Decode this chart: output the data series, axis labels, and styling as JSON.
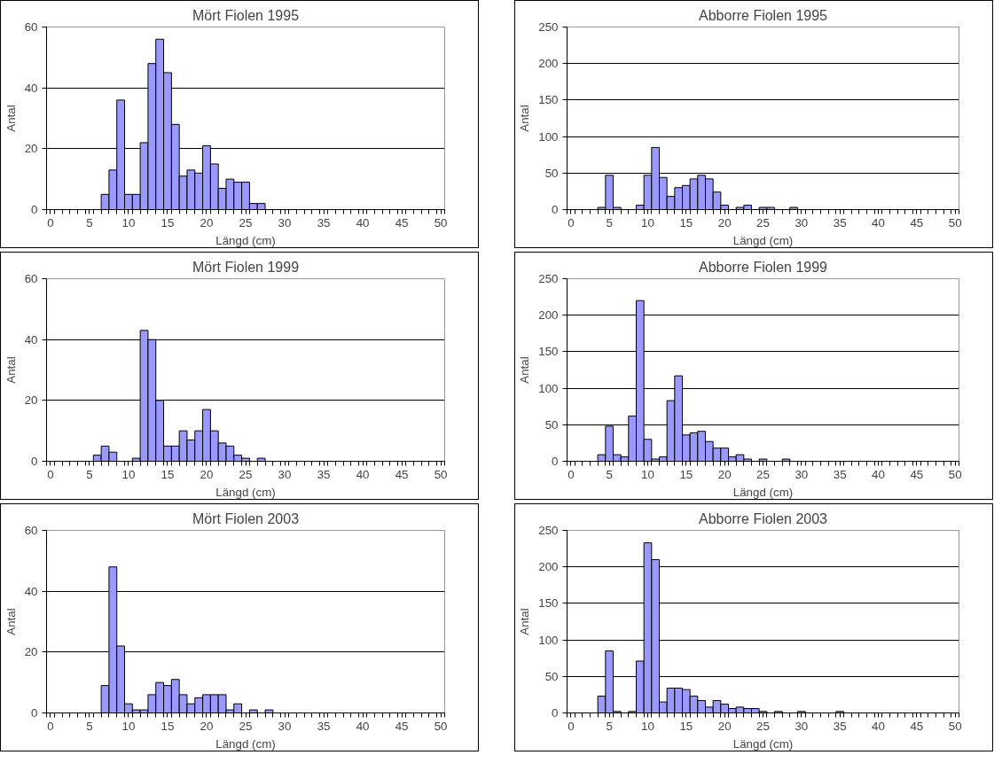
{
  "chart_data": [
    {
      "type": "histogram",
      "title": "Mört Fiolen 1995",
      "xlabel": "Längd (cm)",
      "ylabel": "Antal",
      "color": "#9999ff",
      "grid": "y",
      "xlim": [
        -0.5,
        50.5
      ],
      "xticks": [
        0,
        5,
        10,
        15,
        20,
        25,
        30,
        35,
        40,
        45,
        50
      ],
      "ylim": [
        0,
        60
      ],
      "yticks": [
        0,
        20,
        40,
        60
      ],
      "bins": [
        -0.5,
        0.5,
        1.5,
        2.5,
        3.5,
        4.5,
        5.5,
        6.5,
        7.5,
        8.5,
        9.5,
        10.5,
        11.5,
        12.5,
        13.5,
        14.5,
        15.5,
        16.5,
        17.5,
        18.5,
        19.5,
        20.5,
        21.5,
        22.5,
        23.5,
        24.5,
        25.5,
        26.5,
        27.5,
        28.5,
        29.5,
        30.5,
        31.5,
        32.5,
        33.5,
        34.5,
        35.5,
        36.5,
        37.5,
        38.5,
        39.5,
        40.5,
        41.5,
        42.5,
        43.5,
        44.5,
        45.5,
        46.5,
        47.5,
        48.5,
        49.5,
        50.5
      ],
      "values": [
        0,
        0,
        0,
        0,
        0,
        0,
        0,
        5,
        13,
        36,
        5,
        5,
        22,
        48,
        56,
        45,
        28,
        11,
        13,
        12,
        21,
        15,
        7,
        10,
        9,
        9,
        2,
        2,
        0,
        0,
        0,
        0,
        0,
        0,
        0,
        0,
        0,
        0,
        0,
        0,
        0,
        0,
        0,
        0,
        0,
        0,
        0,
        0,
        0,
        0,
        0
      ]
    },
    {
      "type": "histogram",
      "title": "Abborre Fiolen 1995",
      "xlabel": "Längd (cm)",
      "ylabel": "Antal",
      "color": "#9999ff",
      "grid": "y",
      "xlim": [
        -0.5,
        50.5
      ],
      "xticks": [
        0,
        5,
        10,
        15,
        20,
        25,
        30,
        35,
        40,
        45,
        50
      ],
      "ylim": [
        0,
        250
      ],
      "yticks": [
        0,
        50,
        100,
        150,
        200,
        250
      ],
      "bins": [
        -0.5,
        0.5,
        1.5,
        2.5,
        3.5,
        4.5,
        5.5,
        6.5,
        7.5,
        8.5,
        9.5,
        10.5,
        11.5,
        12.5,
        13.5,
        14.5,
        15.5,
        16.5,
        17.5,
        18.5,
        19.5,
        20.5,
        21.5,
        22.5,
        23.5,
        24.5,
        25.5,
        26.5,
        27.5,
        28.5,
        29.5,
        30.5,
        31.5,
        32.5,
        33.5,
        34.5,
        35.5,
        36.5,
        37.5,
        38.5,
        39.5,
        40.5,
        41.5,
        42.5,
        43.5,
        44.5,
        45.5,
        46.5,
        47.5,
        48.5,
        49.5,
        50.5
      ],
      "values": [
        0,
        0,
        0,
        0,
        3,
        47,
        3,
        0,
        0,
        6,
        47,
        85,
        44,
        18,
        30,
        33,
        42,
        47,
        42,
        24,
        6,
        0,
        3,
        6,
        0,
        3,
        3,
        0,
        0,
        3,
        0,
        0,
        0,
        0,
        0,
        0,
        0,
        0,
        0,
        0,
        0,
        0,
        0,
        0,
        0,
        0,
        0,
        0,
        0,
        0,
        0
      ]
    },
    {
      "type": "histogram",
      "title": "Mört Fiolen 1999",
      "xlabel": "Längd (cm)",
      "ylabel": "Antal",
      "color": "#9999ff",
      "grid": "y",
      "xlim": [
        -0.5,
        50.5
      ],
      "xticks": [
        0,
        5,
        10,
        15,
        20,
        25,
        30,
        35,
        40,
        45,
        50
      ],
      "ylim": [
        0,
        60
      ],
      "yticks": [
        0,
        20,
        40,
        60
      ],
      "bins": [
        -0.5,
        0.5,
        1.5,
        2.5,
        3.5,
        4.5,
        5.5,
        6.5,
        7.5,
        8.5,
        9.5,
        10.5,
        11.5,
        12.5,
        13.5,
        14.5,
        15.5,
        16.5,
        17.5,
        18.5,
        19.5,
        20.5,
        21.5,
        22.5,
        23.5,
        24.5,
        25.5,
        26.5,
        27.5,
        28.5,
        29.5,
        30.5,
        31.5,
        32.5,
        33.5,
        34.5,
        35.5,
        36.5,
        37.5,
        38.5,
        39.5,
        40.5,
        41.5,
        42.5,
        43.5,
        44.5,
        45.5,
        46.5,
        47.5,
        48.5,
        49.5,
        50.5
      ],
      "values": [
        0,
        0,
        0,
        0,
        0,
        0,
        2,
        5,
        3,
        0,
        0,
        1,
        43,
        40,
        20,
        5,
        5,
        10,
        7,
        10,
        17,
        10,
        6,
        5,
        2,
        1,
        0,
        1,
        0,
        0,
        0,
        0,
        0,
        0,
        0,
        0,
        0,
        0,
        0,
        0,
        0,
        0,
        0,
        0,
        0,
        0,
        0,
        0,
        0,
        0,
        0
      ]
    },
    {
      "type": "histogram",
      "title": "Abborre Fiolen 1999",
      "xlabel": "Längd (cm)",
      "ylabel": "Antal",
      "color": "#9999ff",
      "grid": "y",
      "xlim": [
        -0.5,
        50.5
      ],
      "xticks": [
        0,
        5,
        10,
        15,
        20,
        25,
        30,
        35,
        40,
        45,
        50
      ],
      "ylim": [
        0,
        250
      ],
      "yticks": [
        0,
        50,
        100,
        150,
        200,
        250
      ],
      "bins": [
        -0.5,
        0.5,
        1.5,
        2.5,
        3.5,
        4.5,
        5.5,
        6.5,
        7.5,
        8.5,
        9.5,
        10.5,
        11.5,
        12.5,
        13.5,
        14.5,
        15.5,
        16.5,
        17.5,
        18.5,
        19.5,
        20.5,
        21.5,
        22.5,
        23.5,
        24.5,
        25.5,
        26.5,
        27.5,
        28.5,
        29.5,
        30.5,
        31.5,
        32.5,
        33.5,
        34.5,
        35.5,
        36.5,
        37.5,
        38.5,
        39.5,
        40.5,
        41.5,
        42.5,
        43.5,
        44.5,
        45.5,
        46.5,
        47.5,
        48.5,
        49.5,
        50.5
      ],
      "values": [
        0,
        0,
        0,
        0,
        9,
        48,
        9,
        6,
        62,
        220,
        30,
        3,
        6,
        83,
        117,
        36,
        39,
        41,
        27,
        18,
        18,
        6,
        9,
        3,
        0,
        3,
        0,
        0,
        3,
        0,
        0,
        0,
        0,
        0,
        0,
        0,
        0,
        0,
        0,
        0,
        0,
        0,
        0,
        0,
        0,
        0,
        0,
        0,
        0,
        0,
        0
      ]
    },
    {
      "type": "histogram",
      "title": "Mört Fiolen 2003",
      "xlabel": "Längd (cm)",
      "ylabel": "Antal",
      "color": "#9999ff",
      "grid": "y",
      "xlim": [
        -0.5,
        50.5
      ],
      "xticks": [
        0,
        5,
        10,
        15,
        20,
        25,
        30,
        35,
        40,
        45,
        50
      ],
      "ylim": [
        0,
        60
      ],
      "yticks": [
        0,
        20,
        40,
        60
      ],
      "bins": [
        -0.5,
        0.5,
        1.5,
        2.5,
        3.5,
        4.5,
        5.5,
        6.5,
        7.5,
        8.5,
        9.5,
        10.5,
        11.5,
        12.5,
        13.5,
        14.5,
        15.5,
        16.5,
        17.5,
        18.5,
        19.5,
        20.5,
        21.5,
        22.5,
        23.5,
        24.5,
        25.5,
        26.5,
        27.5,
        28.5,
        29.5,
        30.5,
        31.5,
        32.5,
        33.5,
        34.5,
        35.5,
        36.5,
        37.5,
        38.5,
        39.5,
        40.5,
        41.5,
        42.5,
        43.5,
        44.5,
        45.5,
        46.5,
        47.5,
        48.5,
        49.5,
        50.5
      ],
      "values": [
        0,
        0,
        0,
        0,
        0,
        0,
        0,
        9,
        48,
        22,
        3,
        1,
        1,
        6,
        10,
        9,
        11,
        6,
        3,
        5,
        6,
        6,
        6,
        1,
        3,
        0,
        1,
        0,
        1,
        0,
        0,
        0,
        0,
        0,
        0,
        0,
        0,
        0,
        0,
        0,
        0,
        0,
        0,
        0,
        0,
        0,
        0,
        0,
        0,
        0,
        0
      ]
    },
    {
      "type": "histogram",
      "title": "Abborre Fiolen 2003",
      "xlabel": "Längd (cm)",
      "ylabel": "Antal",
      "color": "#9999ff",
      "grid": "y",
      "xlim": [
        -0.5,
        50.5
      ],
      "xticks": [
        0,
        5,
        10,
        15,
        20,
        25,
        30,
        35,
        40,
        45,
        50
      ],
      "ylim": [
        0,
        250
      ],
      "yticks": [
        0,
        50,
        100,
        150,
        200,
        250
      ],
      "bins": [
        -0.5,
        0.5,
        1.5,
        2.5,
        3.5,
        4.5,
        5.5,
        6.5,
        7.5,
        8.5,
        9.5,
        10.5,
        11.5,
        12.5,
        13.5,
        14.5,
        15.5,
        16.5,
        17.5,
        18.5,
        19.5,
        20.5,
        21.5,
        22.5,
        23.5,
        24.5,
        25.5,
        26.5,
        27.5,
        28.5,
        29.5,
        30.5,
        31.5,
        32.5,
        33.5,
        34.5,
        35.5,
        36.5,
        37.5,
        38.5,
        39.5,
        40.5,
        41.5,
        42.5,
        43.5,
        44.5,
        45.5,
        46.5,
        47.5,
        48.5,
        49.5,
        50.5
      ],
      "values": [
        0,
        0,
        0,
        0,
        23,
        85,
        2,
        0,
        2,
        71,
        233,
        210,
        15,
        34,
        34,
        32,
        23,
        17,
        8,
        17,
        12,
        6,
        8,
        6,
        6,
        2,
        0,
        2,
        0,
        0,
        2,
        0,
        0,
        0,
        0,
        2,
        0,
        0,
        0,
        0,
        0,
        0,
        0,
        0,
        0,
        0,
        0,
        0,
        0,
        0,
        0
      ]
    }
  ]
}
